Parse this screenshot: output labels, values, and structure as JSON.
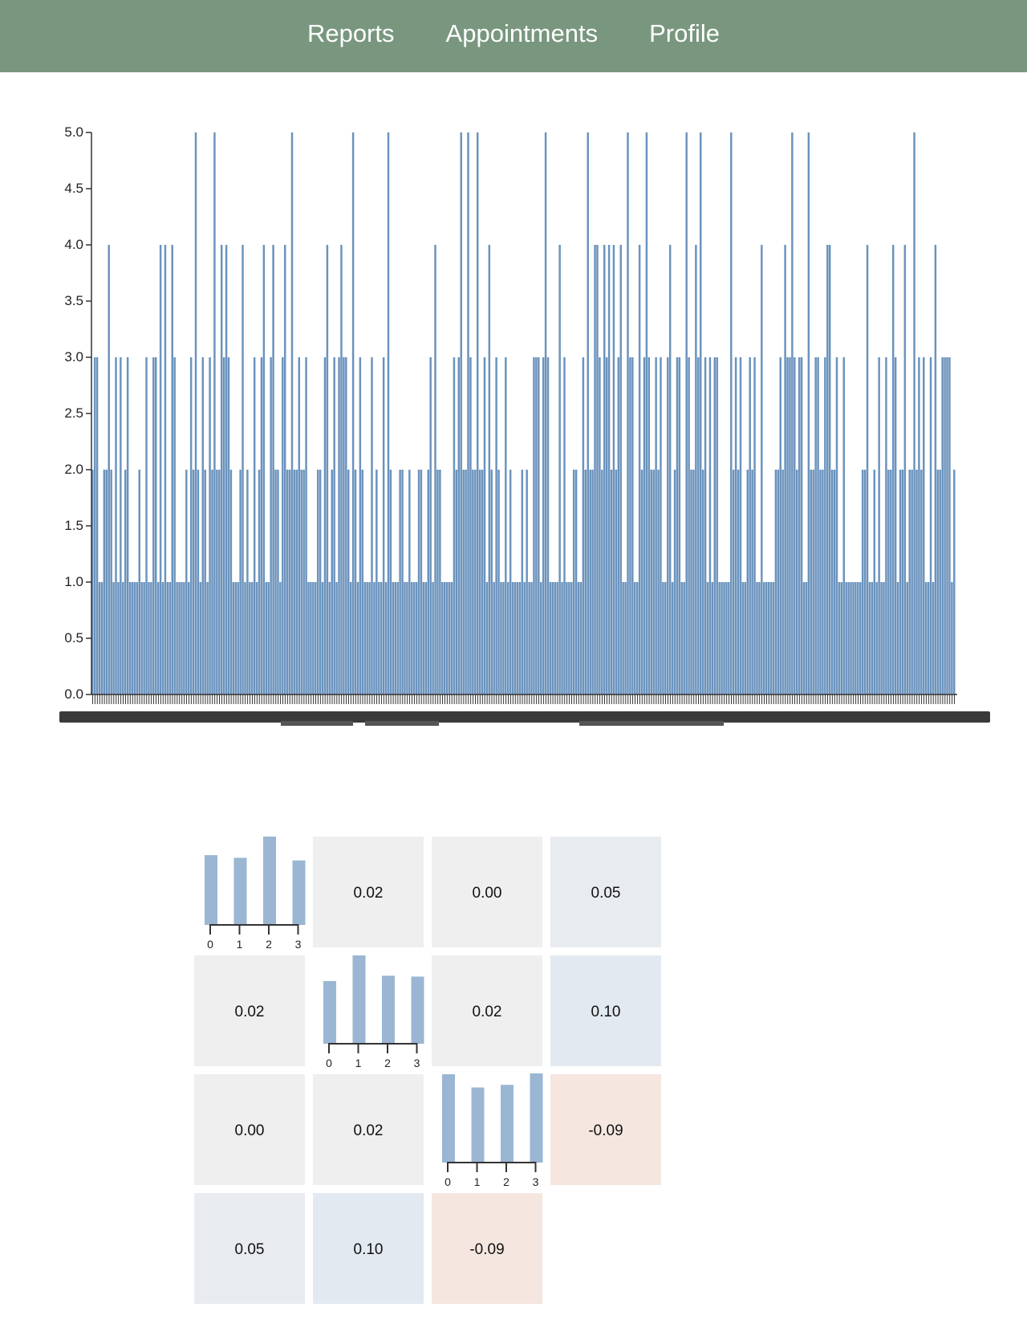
{
  "nav": {
    "items": [
      {
        "id": "reports",
        "label": "Reports"
      },
      {
        "id": "appointments",
        "label": "Appointments"
      },
      {
        "id": "profile",
        "label": "Profile"
      }
    ]
  },
  "colors": {
    "nav_bg": "#79977f",
    "bar": "#6b93bd",
    "hist_bar": "#9bb6d3",
    "axis": "#333333",
    "cell_neutral": "#efefef",
    "cell_blue": "#e2e9f1",
    "cell_orange": "#f5e7e0"
  },
  "chart_data": [
    {
      "type": "bar",
      "ylim": [
        0,
        5
      ],
      "yticks": [
        "0.0",
        "0.5",
        "1.0",
        "1.5",
        "2.0",
        "2.5",
        "3.0",
        "3.5",
        "4.0",
        "4.5",
        "5.0"
      ],
      "values": [
        2,
        3,
        3,
        1,
        1,
        2,
        2,
        4,
        2,
        1,
        3,
        1,
        3,
        1,
        2,
        3,
        1,
        1,
        1,
        1,
        2,
        1,
        1,
        3,
        1,
        1,
        3,
        3,
        1,
        4,
        1,
        4,
        1,
        1,
        4,
        3,
        1,
        1,
        1,
        1,
        2,
        1,
        3,
        2,
        5,
        2,
        1,
        3,
        2,
        1,
        3,
        2,
        5,
        2,
        2,
        4,
        3,
        4,
        3,
        2,
        1,
        1,
        1,
        2,
        4,
        1,
        2,
        1,
        1,
        3,
        1,
        2,
        3,
        4,
        1,
        1,
        3,
        4,
        2,
        2,
        1,
        3,
        4,
        2,
        2,
        5,
        2,
        2,
        3,
        2,
        2,
        3,
        1,
        1,
        1,
        1,
        2,
        2,
        1,
        3,
        4,
        1,
        2,
        3,
        1,
        3,
        4,
        3,
        3,
        2,
        1,
        5,
        2,
        1,
        3,
        2,
        1,
        1,
        1,
        3,
        1,
        2,
        1,
        1,
        3,
        1,
        5,
        2,
        1,
        1,
        1,
        2,
        2,
        1,
        1,
        2,
        1,
        1,
        1,
        2,
        2,
        1,
        1,
        2,
        3,
        1,
        4,
        2,
        2,
        1,
        1,
        1,
        1,
        1,
        3,
        2,
        3,
        5,
        2,
        2,
        5,
        3,
        2,
        2,
        5,
        2,
        2,
        3,
        1,
        4,
        2,
        1,
        3,
        2,
        1,
        1,
        3,
        1,
        2,
        1,
        1,
        1,
        1,
        2,
        1,
        2,
        1,
        1,
        3,
        3,
        3,
        1,
        3,
        5,
        3,
        1,
        1,
        1,
        1,
        4,
        1,
        3,
        1,
        1,
        1,
        2,
        2,
        1,
        1,
        3,
        2,
        5,
        2,
        2,
        4,
        4,
        3,
        2,
        4,
        3,
        4,
        2,
        4,
        2,
        3,
        4,
        1,
        1,
        5,
        3,
        3,
        1,
        1,
        4,
        2,
        3,
        5,
        3,
        2,
        2,
        3,
        2,
        3,
        1,
        1,
        3,
        4,
        1,
        2,
        3,
        3,
        1,
        1,
        5,
        3,
        2,
        2,
        4,
        3,
        5,
        2,
        3,
        1,
        3,
        1,
        3,
        3,
        1,
        1,
        1,
        1,
        1,
        5,
        2,
        3,
        2,
        3,
        1,
        1,
        2,
        3,
        2,
        3,
        1,
        1,
        4,
        1,
        1,
        1,
        1,
        1,
        2,
        2,
        3,
        2,
        4,
        3,
        3,
        5,
        3,
        2,
        3,
        3,
        1,
        1,
        5,
        2,
        2,
        3,
        3,
        2,
        2,
        3,
        4,
        4,
        2,
        2,
        3,
        1,
        1,
        3,
        1,
        1,
        1,
        1,
        1,
        1,
        1,
        2,
        2,
        4,
        1,
        1,
        2,
        1,
        3,
        1,
        1,
        3,
        2,
        2,
        4,
        3,
        1,
        2,
        2,
        4,
        1,
        2,
        2,
        5,
        2,
        3,
        2,
        3,
        1,
        1,
        3,
        1,
        4,
        2,
        2,
        3,
        3,
        3,
        3,
        1,
        2
      ]
    },
    {
      "type": "heatmap",
      "description": "correlation matrix",
      "size": 4,
      "diagonal_histograms": [
        {
          "categories": [
            "0",
            "1",
            "2",
            "3"
          ],
          "values": [
            0.79,
            0.76,
            1.0,
            0.73
          ]
        },
        {
          "categories": [
            "0",
            "1",
            "2",
            "3"
          ],
          "values": [
            0.71,
            1.0,
            0.77,
            0.76
          ]
        },
        {
          "categories": [
            "0",
            "1",
            "2",
            "3"
          ],
          "values": [
            1.0,
            0.85,
            0.88,
            1.01
          ]
        }
      ],
      "cells": [
        {
          "row": 0,
          "col": 1,
          "value": 0.02,
          "label": "0.02"
        },
        {
          "row": 0,
          "col": 2,
          "value": 0.0,
          "label": "0.00"
        },
        {
          "row": 0,
          "col": 3,
          "value": 0.05,
          "label": "0.05"
        },
        {
          "row": 1,
          "col": 0,
          "value": 0.02,
          "label": "0.02"
        },
        {
          "row": 1,
          "col": 2,
          "value": 0.02,
          "label": "0.02"
        },
        {
          "row": 1,
          "col": 3,
          "value": 0.1,
          "label": "0.10"
        },
        {
          "row": 2,
          "col": 0,
          "value": 0.0,
          "label": "0.00"
        },
        {
          "row": 2,
          "col": 1,
          "value": 0.02,
          "label": "0.02"
        },
        {
          "row": 2,
          "col": 3,
          "value": -0.09,
          "label": "-0.09"
        },
        {
          "row": 3,
          "col": 0,
          "value": 0.05,
          "label": "0.05"
        },
        {
          "row": 3,
          "col": 1,
          "value": 0.1,
          "label": "0.10"
        },
        {
          "row": 3,
          "col": 2,
          "value": -0.09,
          "label": "-0.09"
        }
      ]
    }
  ]
}
